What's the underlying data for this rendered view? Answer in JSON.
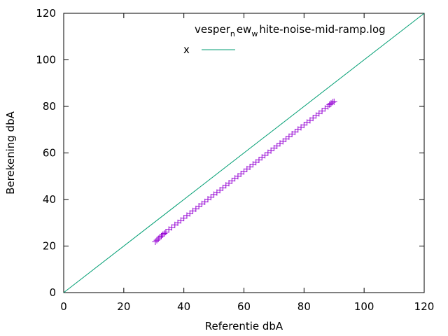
{
  "chart_data": {
    "type": "scatter",
    "title": "",
    "xlabel": "Referentie dbA",
    "ylabel": "Berekening dbA",
    "xlim": [
      0,
      120
    ],
    "ylim": [
      0,
      120
    ],
    "x_ticks": [
      0,
      20,
      40,
      60,
      80,
      100,
      120
    ],
    "y_ticks": [
      0,
      20,
      40,
      60,
      80,
      100,
      120
    ],
    "grid": false,
    "legend_placement": "top-right",
    "legend": {
      "title_parts": [
        "vesper",
        "n",
        "ew",
        "w",
        "hite-noise-mid-ramp.log"
      ],
      "line_label": "x"
    },
    "series": [
      {
        "name": "vesper_new_white-noise-mid-ramp.log",
        "marker": "+",
        "color": "#9400d3",
        "points": [
          [
            30.5,
            21.8
          ],
          [
            31.0,
            22.5
          ],
          [
            31.5,
            23.1
          ],
          [
            32.0,
            23.8
          ],
          [
            32.5,
            24.3
          ],
          [
            33.0,
            24.9
          ],
          [
            33.5,
            25.4
          ],
          [
            34.0,
            26.0
          ],
          [
            35.0,
            27.1
          ],
          [
            36.0,
            28.0
          ],
          [
            37.0,
            29.1
          ],
          [
            38.0,
            30.0
          ],
          [
            39.0,
            31.0
          ],
          [
            40.0,
            32.0
          ],
          [
            41.0,
            33.1
          ],
          [
            42.0,
            34.0
          ],
          [
            43.0,
            35.1
          ],
          [
            44.0,
            36.0
          ],
          [
            45.0,
            37.1
          ],
          [
            46.0,
            38.1
          ],
          [
            47.0,
            39.0
          ],
          [
            48.0,
            40.1
          ],
          [
            49.0,
            41.0
          ],
          [
            50.0,
            42.1
          ],
          [
            51.0,
            43.0
          ],
          [
            52.0,
            44.0
          ],
          [
            53.0,
            45.0
          ],
          [
            54.0,
            46.1
          ],
          [
            55.0,
            47.0
          ],
          [
            56.0,
            48.0
          ],
          [
            57.0,
            49.1
          ],
          [
            58.0,
            50.0
          ],
          [
            59.0,
            51.0
          ],
          [
            60.0,
            52.0
          ],
          [
            61.0,
            53.1
          ],
          [
            62.0,
            54.0
          ],
          [
            63.0,
            55.1
          ],
          [
            64.0,
            56.0
          ],
          [
            65.0,
            57.0
          ],
          [
            66.0,
            58.1
          ],
          [
            67.0,
            59.0
          ],
          [
            68.0,
            60.1
          ],
          [
            69.0,
            61.0
          ],
          [
            70.0,
            62.1
          ],
          [
            71.0,
            63.0
          ],
          [
            72.0,
            64.1
          ],
          [
            73.0,
            65.0
          ],
          [
            74.0,
            66.0
          ],
          [
            75.0,
            67.0
          ],
          [
            76.0,
            68.1
          ],
          [
            77.0,
            69.0
          ],
          [
            78.0,
            70.1
          ],
          [
            79.0,
            71.0
          ],
          [
            80.0,
            72.0
          ],
          [
            81.0,
            73.1
          ],
          [
            82.0,
            74.0
          ],
          [
            83.0,
            75.0
          ],
          [
            84.0,
            76.1
          ],
          [
            85.0,
            77.0
          ],
          [
            86.0,
            78.0
          ],
          [
            87.0,
            79.1
          ],
          [
            88.0,
            80.0
          ],
          [
            88.5,
            80.8
          ],
          [
            89.0,
            81.3
          ],
          [
            89.5,
            81.8
          ],
          [
            90.0,
            82.0
          ]
        ]
      },
      {
        "name": "x",
        "style": "line",
        "color": "#009e73",
        "points": [
          [
            0,
            0
          ],
          [
            120,
            120
          ]
        ]
      }
    ]
  }
}
